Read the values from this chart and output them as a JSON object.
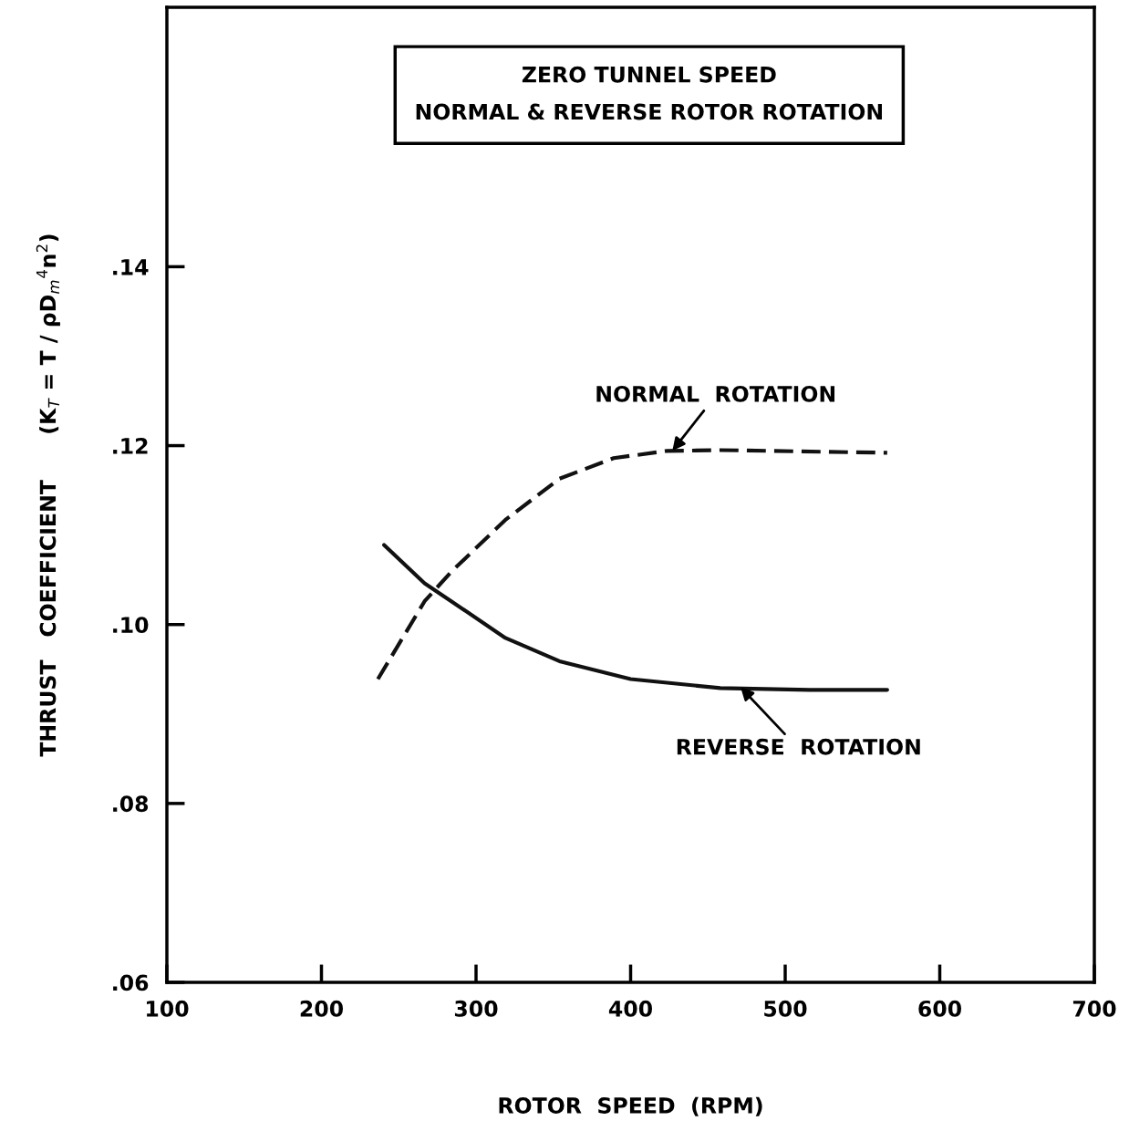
{
  "chart_data": {
    "type": "line",
    "title": "ZERO TUNNEL SPEED",
    "subtitle": "NORMAL & REVERSE ROTOR ROTATION",
    "xlabel": "ROTOR  SPEED  (RPM)",
    "ylabel": "THRUST   COEFFICIENT      (K$_{T}$ = T / ρD$_{m}$$^{4}$n$^{2}$)",
    "series": [
      {
        "color": "#111111",
        "line_style": "dashed",
        "x": [
          236.5,
          266.7,
          284,
          319,
          354,
          389,
          423,
          458,
          566
        ],
        "values": [
          0.0939,
          0.1026,
          0.1059,
          0.1117,
          0.1163,
          0.1186,
          0.1194,
          0.1195,
          0.1192
        ]
      },
      {
        "color": "#111111",
        "line_style": "solid",
        "x": [
          240.5,
          266.7,
          284,
          319,
          354,
          400,
          458,
          516,
          566
        ],
        "values": [
          0.1089,
          0.1046,
          0.1026,
          0.0985,
          0.0959,
          0.0939,
          0.0929,
          0.0927,
          0.0927
        ]
      }
    ],
    "annotations": [
      {
        "text": "NORMAL  ROTATION",
        "x": 426,
        "y": 0.1192
      },
      {
        "text": "REVERSE  ROTATION",
        "x": 470,
        "y": 0.0932
      }
    ],
    "xlim": [
      100,
      700
    ],
    "xticks": [
      100,
      200,
      300,
      400,
      500,
      600,
      700
    ],
    "ylim": [
      0.06,
      0.169
    ],
    "yticks": [
      {
        "value": 0.06,
        "label": ".06"
      },
      {
        "value": 0.08,
        "label": ".08"
      },
      {
        "value": 0.1,
        "label": ".10"
      },
      {
        "value": 0.12,
        "label": ".12"
      },
      {
        "value": 0.14,
        "label": ".14"
      }
    ],
    "grid": false,
    "marker": "none"
  }
}
